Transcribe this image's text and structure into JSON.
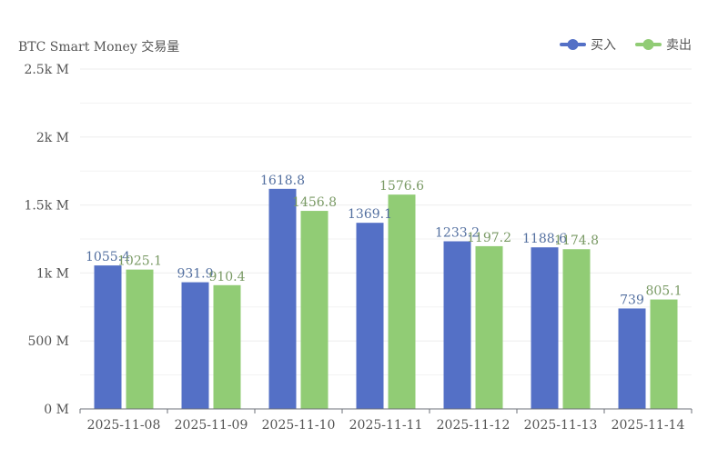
{
  "chart_data": {
    "type": "bar",
    "title": "BTC Smart Money 交易量",
    "categories": [
      "2025-11-08",
      "2025-11-09",
      "2025-11-10",
      "2025-11-11",
      "2025-11-12",
      "2025-11-13",
      "2025-11-14"
    ],
    "series": [
      {
        "name": "买入",
        "color": "#5470c6",
        "values": [
          1055.4,
          931.9,
          1618.8,
          1369.1,
          1233.2,
          1188.6,
          739
        ],
        "labels": [
          "1055.4",
          "931.9",
          "1618.8",
          "1369.1",
          "1233.2",
          "1188.6",
          "739"
        ]
      },
      {
        "name": "卖出",
        "color": "#91cc75",
        "values": [
          1025.1,
          910.4,
          1456.8,
          1576.6,
          1197.2,
          1174.8,
          805.1
        ],
        "labels": [
          "1025.1",
          "910.4",
          "1456.8",
          "1576.6",
          "1197.2",
          "1174.8",
          "805.1"
        ]
      }
    ],
    "ylim": [
      0,
      2500
    ],
    "yticks": [
      0,
      500,
      1000,
      1500,
      2000,
      2500
    ],
    "ytick_labels": [
      "0 M",
      "500 M",
      "1k M",
      "1.5k M",
      "2k M",
      "2.5k M"
    ],
    "xlabel": "",
    "ylabel": "",
    "grid": true,
    "legend_position": "top-right",
    "colors": {
      "grid": "#eeeeee",
      "axis": "#6e7079",
      "text": "#555555"
    }
  }
}
